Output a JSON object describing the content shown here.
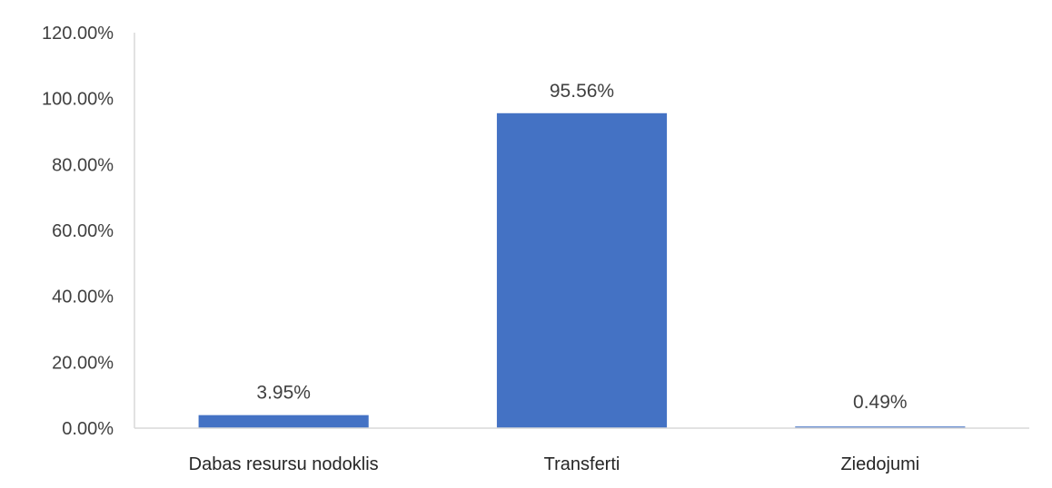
{
  "chart_data": {
    "type": "bar",
    "categories": [
      "Dabas resursu nodoklis",
      "Transferti",
      "Ziedojumi"
    ],
    "values": [
      3.95,
      95.56,
      0.49
    ],
    "data_labels": [
      "3.95%",
      "95.56%",
      "0.49%"
    ],
    "y_ticks": [
      "0.00%",
      "20.00%",
      "40.00%",
      "60.00%",
      "80.00%",
      "100.00%",
      "120.00%"
    ],
    "ylim": [
      0,
      120
    ],
    "grid": false,
    "legend": "none",
    "bar_color": "#4472C4",
    "axis_color": "#D9D9D9"
  }
}
